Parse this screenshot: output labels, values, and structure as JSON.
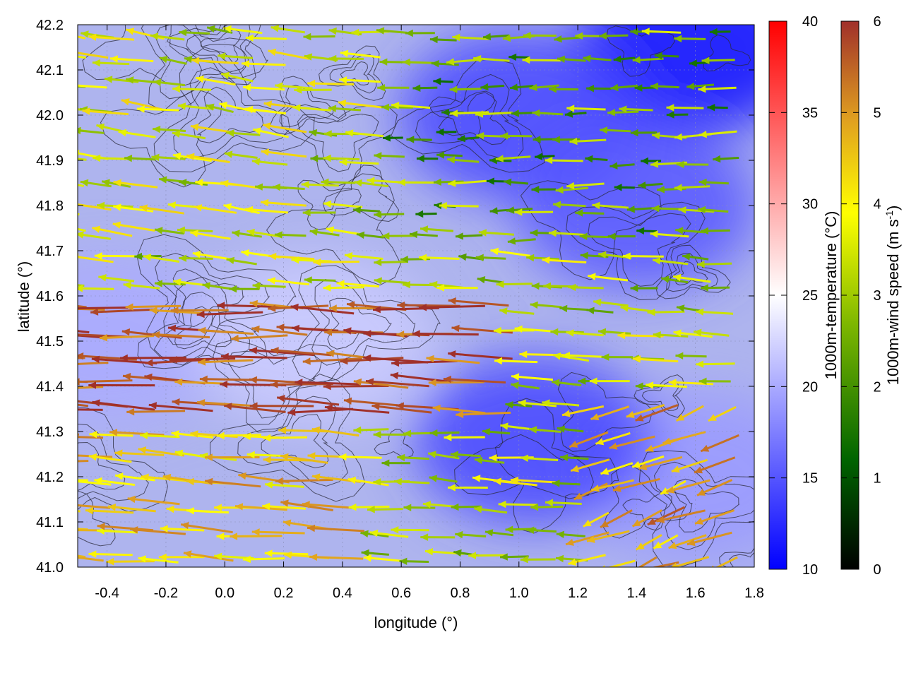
{
  "chart_data": {
    "type": "heatmap",
    "title": "",
    "xlabel": "longitude (°)",
    "ylabel": "latitude (°)",
    "xlim": [
      -0.5,
      1.8
    ],
    "ylim": [
      41.0,
      42.2
    ],
    "x_ticks": [
      "-0.4",
      "-0.2",
      "0.0",
      "0.2",
      "0.4",
      "0.6",
      "0.8",
      "1.0",
      "1.2",
      "1.4",
      "1.6",
      "1.8"
    ],
    "x_tick_values": [
      -0.4,
      -0.2,
      0.0,
      0.2,
      0.4,
      0.6,
      0.8,
      1.0,
      1.2,
      1.4,
      1.6,
      1.8
    ],
    "y_ticks": [
      "41.0",
      "41.1",
      "41.2",
      "41.3",
      "41.4",
      "41.5",
      "41.6",
      "41.7",
      "41.8",
      "41.9",
      "42.0",
      "42.1",
      "42.2"
    ],
    "y_tick_values": [
      41.0,
      41.1,
      41.2,
      41.3,
      41.4,
      41.5,
      41.6,
      41.7,
      41.8,
      41.9,
      42.0,
      42.1,
      42.2
    ],
    "grid": true,
    "temperature_colorbar": {
      "label": "1000m-temperature (°C)",
      "range": [
        10,
        40
      ],
      "ticks": [
        "10",
        "15",
        "20",
        "25",
        "30",
        "35",
        "40"
      ],
      "tick_values": [
        10,
        15,
        20,
        25,
        30,
        35,
        40
      ],
      "colors": [
        "#0000ff",
        "#ffffff",
        "#ff0000"
      ]
    },
    "wind_colorbar": {
      "label_main": "1000m-wind speed (m s",
      "label_sup": "-1",
      "label_end": ")",
      "range": [
        0,
        6
      ],
      "ticks": [
        "0",
        "1",
        "2",
        "3",
        "4",
        "5",
        "6"
      ],
      "tick_values": [
        0,
        1,
        2,
        3,
        4,
        5,
        6
      ],
      "colors": [
        "#000000",
        "#006400",
        "#7fb800",
        "#ffff00",
        "#e0a020",
        "#a0302a"
      ]
    },
    "temperature_regions": [
      {
        "lon": -0.4,
        "lat": 41.5,
        "temp": 20
      },
      {
        "lon": 0.3,
        "lat": 41.5,
        "temp": 22
      },
      {
        "lon": 1.6,
        "lat": 42.15,
        "temp": 11
      },
      {
        "lon": 1.0,
        "lat": 42.0,
        "temp": 14
      },
      {
        "lon": 1.4,
        "lat": 41.8,
        "temp": 15
      },
      {
        "lon": 1.6,
        "lat": 41.2,
        "temp": 19
      },
      {
        "lon": 1.05,
        "lat": 41.28,
        "temp": 14
      }
    ],
    "wind_zones": [
      {
        "region": "central band",
        "lon": [
          -0.5,
          1.0
        ],
        "lat": [
          41.3,
          41.6
        ],
        "speed": 5.8,
        "direction_deg": 185
      },
      {
        "region": "north-west",
        "lon": [
          -0.5,
          0.3
        ],
        "lat": [
          41.7,
          42.2
        ],
        "speed": 3.2,
        "direction_deg": 200
      },
      {
        "region": "north-east",
        "lon": [
          0.6,
          1.8
        ],
        "lat": [
          41.7,
          42.2
        ],
        "speed": 2.3,
        "direction_deg": 180
      },
      {
        "region": "south-east",
        "lon": [
          1.3,
          1.8
        ],
        "lat": [
          41.0,
          41.4
        ],
        "speed": 4.6,
        "direction_deg": 135
      },
      {
        "region": "south-west",
        "lon": [
          -0.5,
          0.5
        ],
        "lat": [
          41.0,
          41.3
        ],
        "speed": 4.2,
        "direction_deg": 190
      }
    ]
  }
}
